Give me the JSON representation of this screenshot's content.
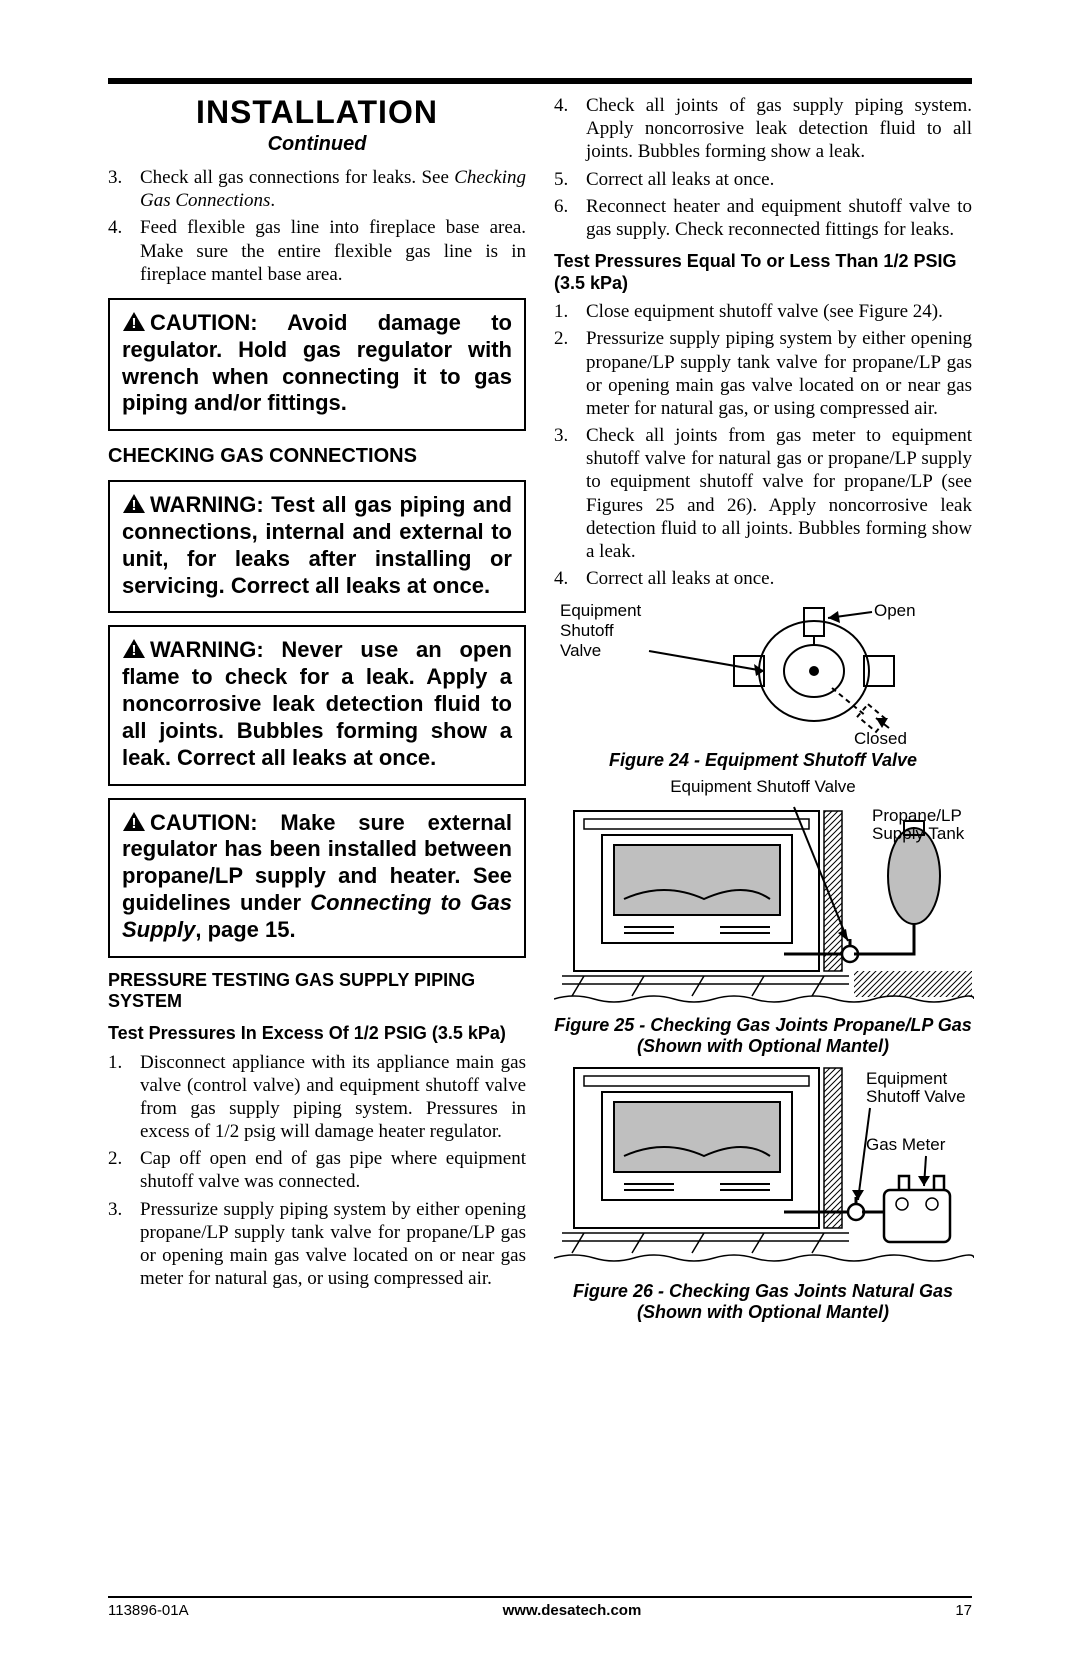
{
  "header": {
    "title": "INSTALLATION",
    "continued": "Continued"
  },
  "left": {
    "list1": [
      {
        "n": 3,
        "html": "Check all gas connections for leaks. See <span class='italic'>Checking Gas Connections</span>."
      },
      {
        "n": 4,
        "html": "Feed flexible gas line into fireplace base area. Make sure the entire flexible gas line is in fireplace mantel base area."
      }
    ],
    "caution1": "CAUTION: Avoid damage to regulator. Hold gas regulator with wrench when connecting it to gas piping and/or fittings.",
    "subhead_check": "CHECKING GAS CONNECTIONS",
    "warning1": "WARNING: Test all gas piping and connections, internal and external to unit, for leaks after installing or servicing. Correct all leaks at once.",
    "warning2": "WARNING: Never use an open flame to check for a leak. Apply a noncorrosive leak detection fluid to all joints. Bubbles forming show a leak. Correct all leaks at once.",
    "caution2_a": "CAUTION: Make sure external regulator has been installed between propane/LP supply and heater. See guidelines under ",
    "caution2_i": "Connecting to Gas Supply",
    "caution2_b": ", page 15.",
    "subhead_pressure": "PRESSURE TESTING GAS SUPPLY PIPING SYSTEM",
    "subhead_excess": "Test Pressures In Excess Of 1/2 PSIG (3.5 kPa)",
    "list2": [
      "Disconnect appliance with its appliance main gas valve (control valve) and equipment shutoff valve from gas supply piping system. Pressures in excess of 1/2 psig will damage heater regulator.",
      "Cap off open end of gas pipe where equipment shutoff valve was connected.",
      "Pressurize supply piping system by either opening propane/LP supply tank valve for propane/LP gas or opening main gas valve located on or near gas meter for natural gas, or using compressed air."
    ]
  },
  "right": {
    "list1": [
      {
        "n": 4,
        "text": "Check all joints of gas supply piping system. Apply noncorrosive leak detection fluid to all joints. Bubbles forming show a leak."
      },
      {
        "n": 5,
        "text": "Correct all leaks at once."
      },
      {
        "n": 6,
        "text": "Reconnect heater and equipment shutoff valve to gas supply. Check reconnected fittings for leaks."
      }
    ],
    "subhead_equal": "Test Pressures Equal To or Less Than 1/2 PSIG (3.5 kPa)",
    "list2": [
      "Close equipment shutoff valve (see Figure 24).",
      "Pressurize supply piping system by either opening propane/LP supply tank valve for propane/LP gas or opening main gas valve located on or near gas meter for natural gas, or using compressed air.",
      "Check all joints from gas meter to equipment shutoff valve for natural gas or propane/LP supply to equipment shutoff valve for propane/LP (see Figures 25 and 26). Apply noncorrosive leak detection fluid to all joints. Bubbles forming show a leak.",
      "Correct all leaks at once."
    ],
    "fig24": {
      "caption": "Figure 24 - Equipment Shutoff Valve",
      "labels": {
        "esv": "Equipment Shutoff Valve",
        "open": "Open",
        "closed": "Closed"
      }
    },
    "fig25": {
      "caption": "Figure 25 - Checking Gas Joints Propane/LP Gas (Shown with Optional Mantel)",
      "labels": {
        "esv": "Equipment Shutoff Valve",
        "tank": "Propane/LP Supply Tank"
      }
    },
    "fig26": {
      "caption": "Figure 26 - Checking Gas Joints Natural Gas (Shown with Optional Mantel)",
      "labels": {
        "esv": "Equipment Shutoff Valve",
        "meter": "Gas Meter"
      }
    }
  },
  "footer": {
    "doc": "113896-01A",
    "url": "www.desatech.com",
    "page": "17"
  },
  "colors": {
    "text": "#000000",
    "background": "#ffffff",
    "fill_gray": "#bfbfbf",
    "hatch": "#000000"
  },
  "typography": {
    "body_font": "Times New Roman",
    "heading_font": "Arial",
    "body_size_pt": 14,
    "callout_size_pt": 16,
    "title_size_pt": 24
  }
}
